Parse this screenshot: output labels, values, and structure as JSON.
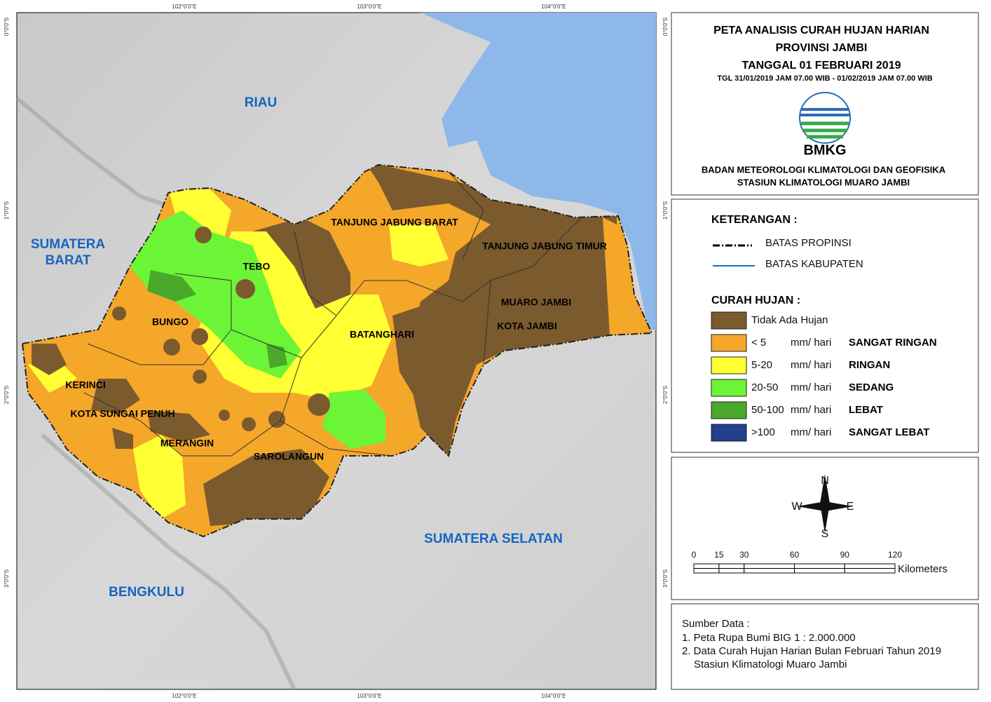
{
  "map": {
    "graticule": {
      "lon": [
        "102°0'0\"E",
        "103°0'0\"E",
        "104°0'0\"E"
      ],
      "lat": [
        "0°0'0\"S",
        "1°0'0\"S",
        "2°0'0\"S",
        "3°0'0\"S"
      ]
    },
    "regions": [
      "RIAU",
      [
        "SUMATERA",
        "BARAT"
      ],
      "BENGKULU",
      "SUMATERA SELATAN"
    ],
    "districts": [
      "TANJUNG JABUNG BARAT",
      "TANJUNG JABUNG TIMUR",
      "MUARO JAMBI",
      "KOTA JAMBI",
      "BATANGHARI",
      "TEBO",
      "BUNGO",
      "KERINCI",
      "KOTA SUNGAI PENUH",
      "MERANGIN",
      "SAROLANGUN"
    ]
  },
  "header": {
    "title": [
      "PETA ANALISIS CURAH HUJAN HARIAN",
      "PROVINSI JAMBI",
      "TANGGAL 01 FEBRUARI 2019"
    ],
    "period": "TGL 31/01/2019 JAM 07.00 WIB - 01/02/2019 JAM 07.00 WIB",
    "logo": "BMKG",
    "agency": [
      "BADAN METEOROLOGI KLIMATOLOGI DAN GEOFISIKA",
      "STASIUN KLIMATOLOGI MUARO JAMBI"
    ]
  },
  "legend": {
    "title": "KETERANGAN :",
    "lines": [
      "BATAS PROPINSI",
      "BATAS KABUPATEN"
    ],
    "rain_title": "CURAH HUJAN :",
    "items": [
      {
        "color": "#7b5a2e",
        "range": "Tidak Ada Hujan"
      },
      {
        "color": "#f5a72a",
        "range": "< 5",
        "unit": "mm/ hari",
        "category": "SANGAT RINGAN"
      },
      {
        "color": "#ffff33",
        "range": "5-20",
        "unit": "mm/ hari",
        "category": "RINGAN"
      },
      {
        "color": "#6cf536",
        "range": "20-50",
        "unit": "mm/ hari",
        "category": "SEDANG"
      },
      {
        "color": "#4aa82c",
        "range": "50-100",
        "unit": "mm/ hari",
        "category": "LEBAT"
      },
      {
        "color": "#22408c",
        "range": ">100",
        "unit": "mm/ hari",
        "category": "SANGAT LEBAT"
      }
    ]
  },
  "compass": {
    "n": "N",
    "e": "E",
    "s": "S",
    "w": "W"
  },
  "scale_bar": {
    "ticks": [
      0,
      15,
      30,
      60,
      90,
      120
    ],
    "unit": "Kilometers"
  },
  "source": {
    "title": "Sumber Data :",
    "lines": [
      "1. Peta Rupa Bumi BIG 1 : 2.000.000",
      "2. Data Curah Hujan Harian Bulan Februari Tahun 2019",
      "Stasiun Klimatologi Muaro Jambi"
    ]
  }
}
